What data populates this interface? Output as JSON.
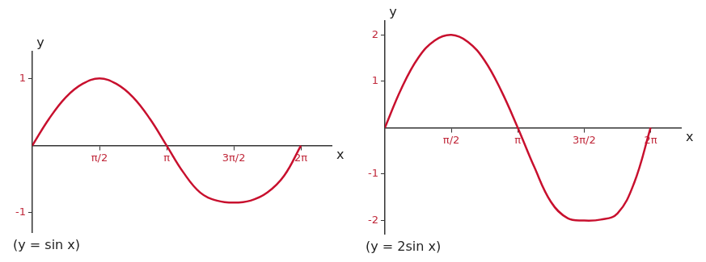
{
  "chart_data": [
    {
      "type": "line",
      "title": "(y = sin x)",
      "x_label": "x",
      "y_label": "y",
      "x": [
        0,
        0.393,
        0.785,
        1.178,
        1.571,
        1.963,
        2.356,
        2.749,
        3.142,
        3.534,
        3.927,
        4.32,
        4.712,
        5.105,
        5.498,
        5.89,
        6.283
      ],
      "series": [
        {
          "color": "#c8102e",
          "values": [
            0,
            0.4,
            0.72,
            0.92,
            1.0,
            0.92,
            0.72,
            0.4,
            0,
            -0.4,
            -0.7,
            -0.82,
            -0.85,
            -0.82,
            -0.7,
            -0.45,
            0
          ]
        }
      ],
      "xlim": [
        0,
        7
      ],
      "ylim": [
        -1.3,
        1.4
      ],
      "xticks": [
        {
          "value": 1.571,
          "label": "π/2"
        },
        {
          "value": 3.142,
          "label": "π"
        },
        {
          "value": 4.712,
          "label": "3π/2"
        },
        {
          "value": 6.283,
          "label": "2π"
        }
      ],
      "yticks": [
        -1,
        1
      ],
      "grid": false,
      "marker": "none"
    },
    {
      "type": "line",
      "title": "(y = 2sin x)",
      "x_label": "x",
      "y_label": "y",
      "x": [
        0,
        0.393,
        0.785,
        1.178,
        1.571,
        1.963,
        2.356,
        2.749,
        3.142,
        3.534,
        3.927,
        4.32,
        4.712,
        5.105,
        5.498,
        5.89,
        6.283
      ],
      "series": [
        {
          "color": "#c8102e",
          "values": [
            0,
            0.85,
            1.5,
            1.88,
            2.0,
            1.85,
            1.45,
            0.8,
            0,
            -0.85,
            -1.6,
            -1.95,
            -2.0,
            -1.98,
            -1.85,
            -1.2,
            0
          ]
        }
      ],
      "xlim": [
        0,
        7
      ],
      "ylim": [
        -2.3,
        2.3
      ],
      "xticks": [
        {
          "value": 1.571,
          "label": "π/2"
        },
        {
          "value": 3.142,
          "label": "π"
        },
        {
          "value": 4.712,
          "label": "3π/2"
        },
        {
          "value": 6.283,
          "label": "2π"
        }
      ],
      "yticks": [
        -2,
        -1,
        1,
        2
      ],
      "grid": false,
      "marker": "none"
    }
  ]
}
